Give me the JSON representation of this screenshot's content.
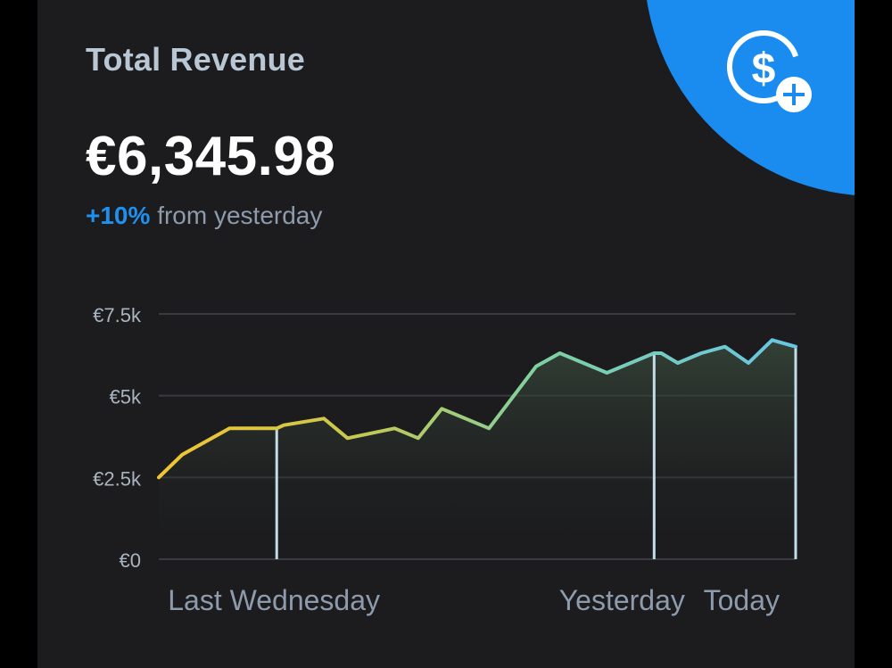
{
  "card": {
    "title": "Total Revenue",
    "amount": "€6,345.98",
    "delta_pct": "+10%",
    "delta_text": "from yesterday",
    "icon": "dollar-add-icon"
  },
  "colors": {
    "accent": "#1a8cf0",
    "card_bg": "#1c1c1e",
    "line_start": "#f2c531",
    "line_end": "#67c6e6"
  },
  "chart_data": {
    "type": "area",
    "title": "",
    "xlabel": "",
    "ylabel": "",
    "ylim": [
      0,
      7500
    ],
    "yticks": [
      0,
      2500,
      5000,
      7500
    ],
    "ytick_labels": [
      "€0",
      "€2.5k",
      "€5k",
      "€7.5k"
    ],
    "x_labels": [
      {
        "index": 5,
        "label": "Last Wednesday"
      },
      {
        "index": 21,
        "label": "Yesterday"
      },
      {
        "index": 26,
        "label": "Today"
      }
    ],
    "series": [
      {
        "values": [
          2500,
          3200,
          4000,
          4000,
          4000,
          4100,
          4300,
          3700,
          4000,
          3700,
          4600,
          4000,
          5900,
          6300,
          6000,
          5700,
          6000,
          6300,
          6300,
          6000,
          6300,
          6500,
          6000,
          6700,
          6500
        ]
      }
    ],
    "x_index": [
      0,
      1,
      3,
      4,
      5,
      5.3,
      7,
      8,
      10,
      11,
      12,
      14,
      16,
      17,
      18,
      19,
      20,
      21,
      21.3,
      22,
      23,
      24,
      25,
      26,
      27
    ],
    "markers_at_index": [
      5,
      21,
      27
    ],
    "grid": true
  }
}
